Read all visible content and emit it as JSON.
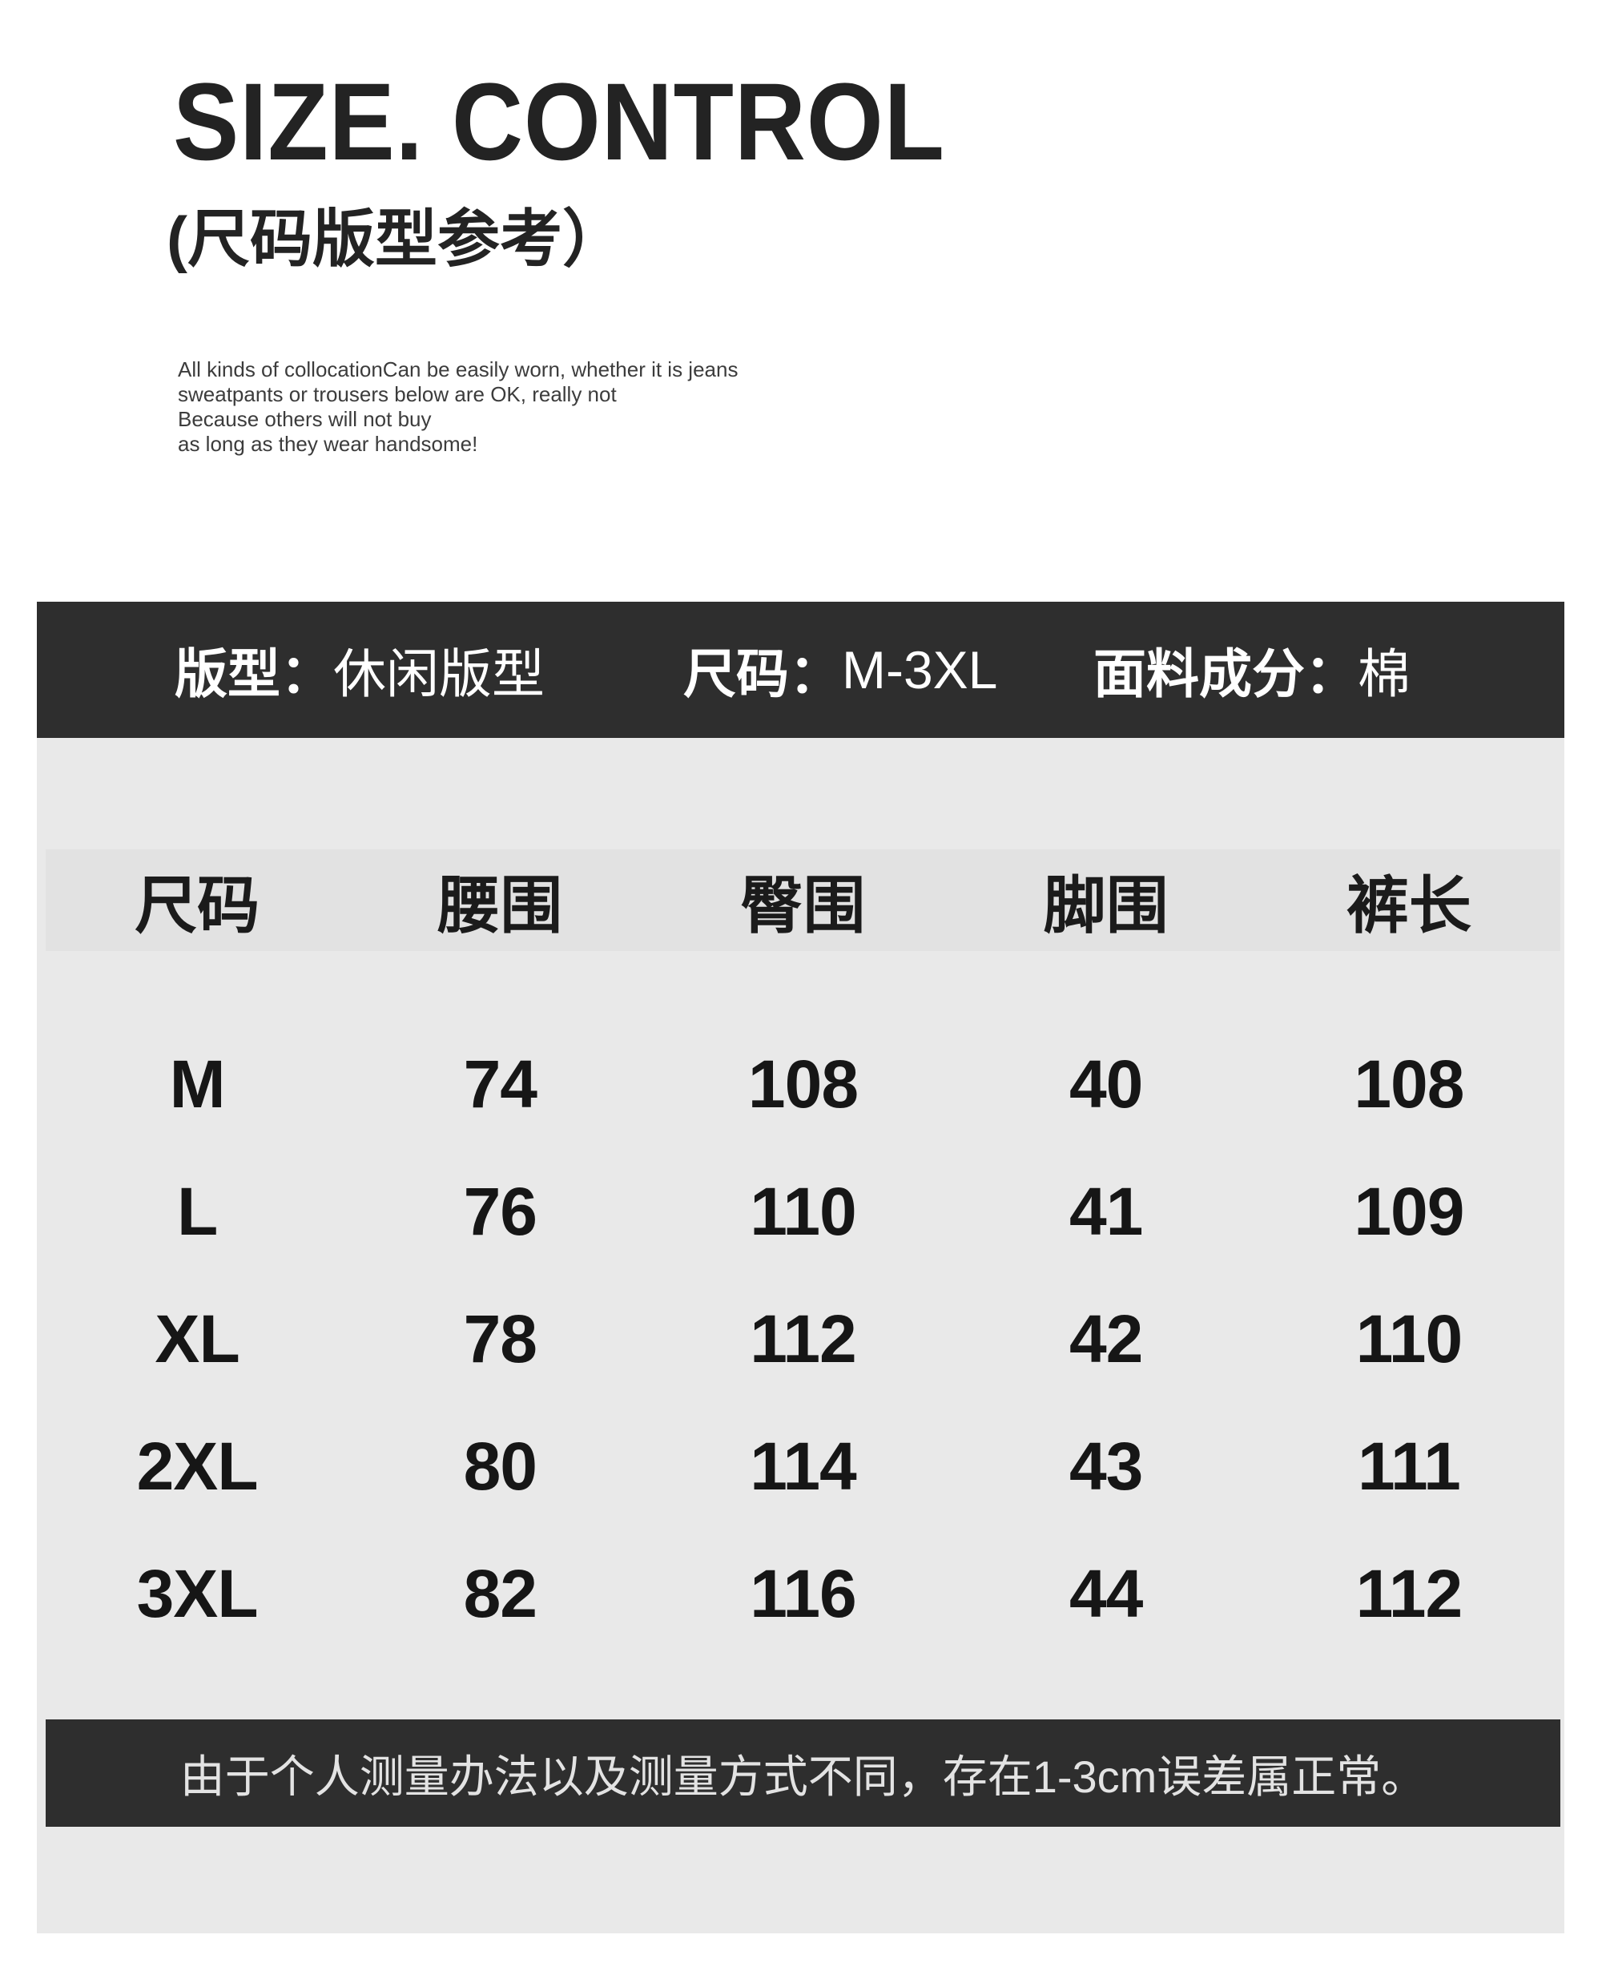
{
  "header": {
    "title": "SIZE. CONTROL",
    "subtitle": "(尺码版型参考）",
    "description_lines": [
      "All kinds of collocationCan be easily worn, whether it is jeans",
      "sweatpants or trousers below are OK, really not",
      "Because others will not buy",
      "as long as they wear handsome!"
    ]
  },
  "info_bar": {
    "items": [
      {
        "label": "版型：",
        "value": "休闲版型"
      },
      {
        "label": "尺码：",
        "value": "M-3XL"
      },
      {
        "label": "面料成分：",
        "value": "棉"
      }
    ]
  },
  "size_table": {
    "columns": [
      "尺码",
      "腰围",
      "臀围",
      "脚围",
      "裤长"
    ],
    "rows": [
      {
        "size": "M",
        "values": [
          "74",
          "108",
          "40",
          "108"
        ]
      },
      {
        "size": "L",
        "values": [
          "76",
          "110",
          "41",
          "109"
        ]
      },
      {
        "size": "XL",
        "values": [
          "78",
          "112",
          "42",
          "110"
        ]
      },
      {
        "size": "2XL",
        "values": [
          "80",
          "114",
          "43",
          "111"
        ]
      },
      {
        "size": "3XL",
        "values": [
          "82",
          "116",
          "44",
          "112"
        ]
      }
    ]
  },
  "footnote": "由于个人测量办法以及测量方式不同，存在1-3cm误差属正常。",
  "colors": {
    "page_background": "#ffffff",
    "panel_background": "#e9e9e9",
    "header_band_background": "#e2e2e2",
    "dark_bar_background": "#2e2e2e",
    "dark_bar_text": "#ffffff",
    "footnote_text": "#e3e3e3",
    "body_text": "#1d1d1d"
  }
}
